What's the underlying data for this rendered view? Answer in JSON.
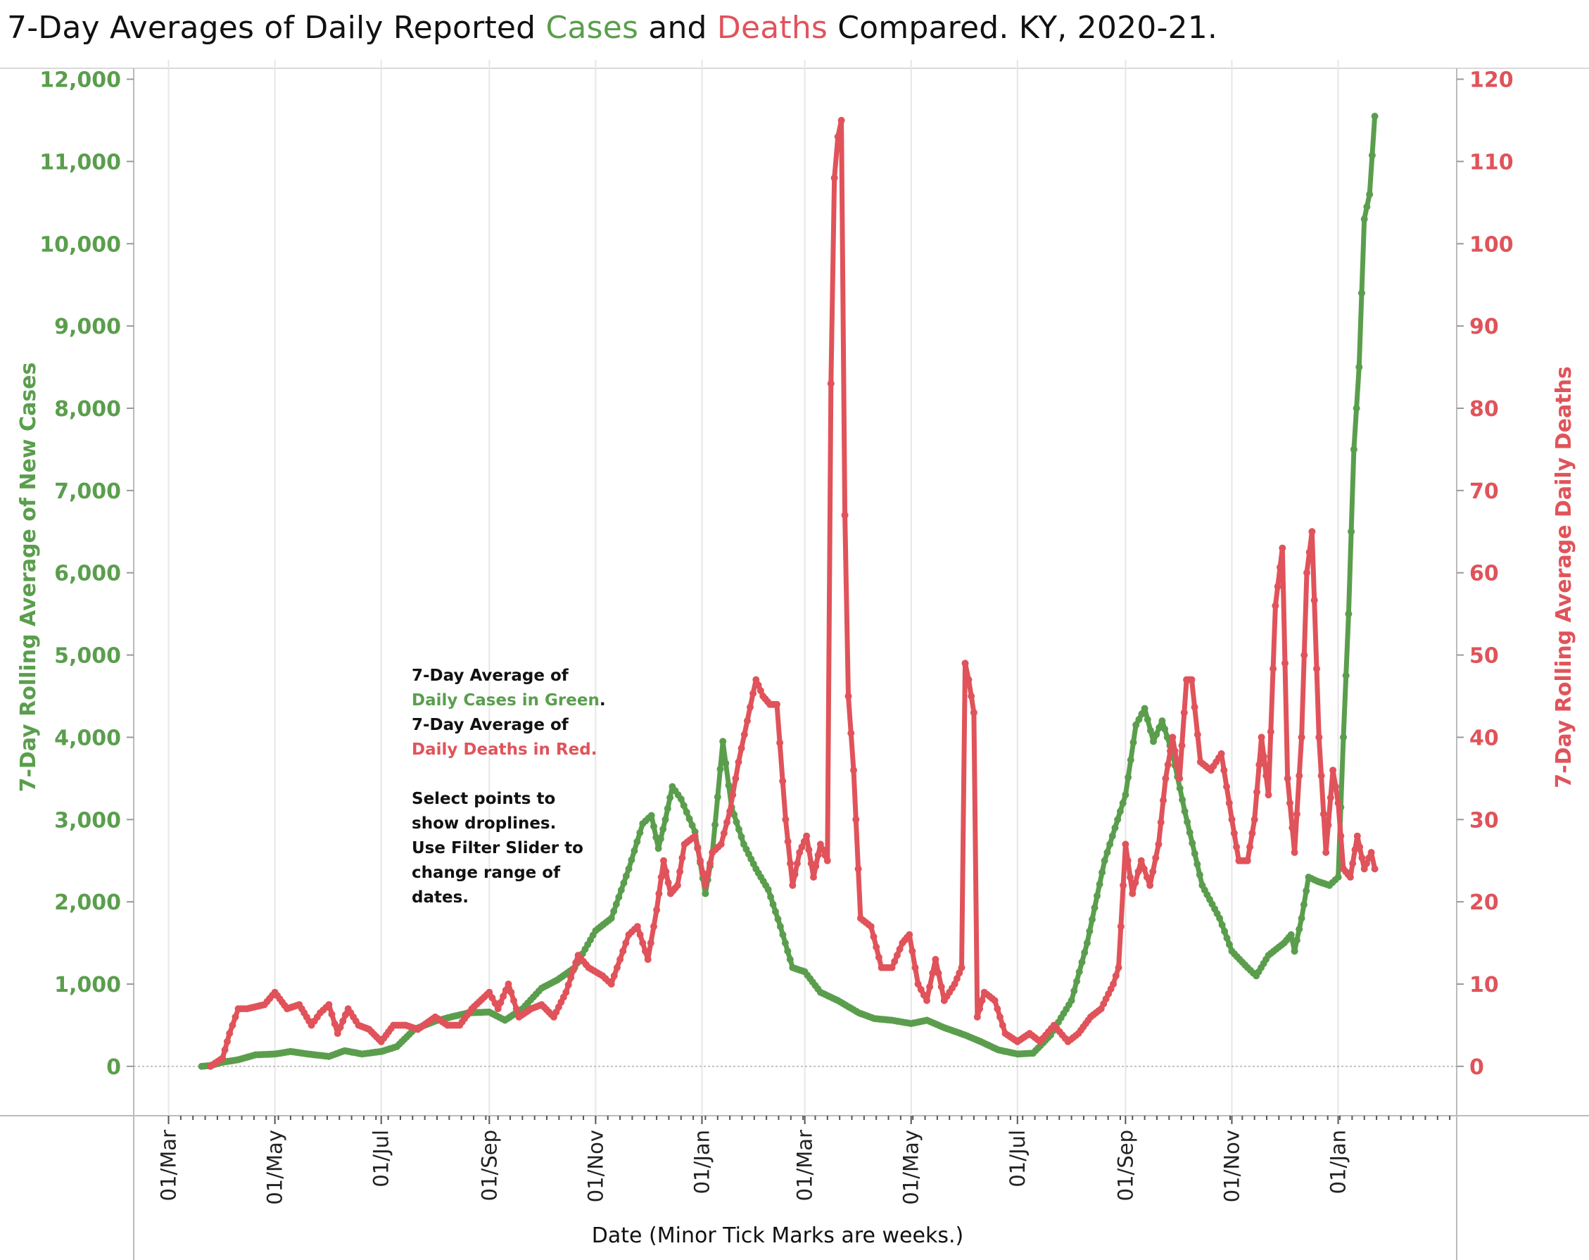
{
  "title": {
    "prefix": "7-Day Averages of Daily Reported ",
    "cases_word": "Cases",
    "middle": " and ",
    "deaths_word": "Deaths",
    "suffix": " Compared. KY, 2020-21."
  },
  "annotation": {
    "line1": "7-Day Average of",
    "line2": "Daily Cases in Green",
    "line2_punct": ".",
    "line3": "7-Day Average of",
    "line4": "Daily Deaths in Red.",
    "line5": "Select points to",
    "line6": "show droplines.",
    "line7": "Use Filter Slider to",
    "line8": "change range of",
    "line9": "dates."
  },
  "colors": {
    "cases": "#5a9e4d",
    "deaths": "#e0535a",
    "grid": "#e6e6e6",
    "axis": "#bbbbbb"
  },
  "chart_data": {
    "type": "line",
    "title": "7-Day Averages of Daily Reported Cases and Deaths Compared. KY, 2020-21.",
    "xlabel": "Date  (Minor Tick Marks are weeks.)",
    "ylabel_left": "7-Day Rolling  Average of New Cases",
    "ylabel_right": "7-Day Rolling Average Daily  Deaths",
    "x_tick_labels": [
      "01/Mar",
      "01/May",
      "01/Jul",
      "01/Sep",
      "01/Nov",
      "01/Jan",
      "01/Mar",
      "01/May",
      "01/Jul",
      "01/Sep",
      "01/Nov",
      "01/Jan"
    ],
    "x_tick_dates": [
      "2020-03-01",
      "2020-05-01",
      "2020-07-01",
      "2020-09-01",
      "2020-11-01",
      "2021-01-01",
      "2021-03-01",
      "2021-05-01",
      "2021-07-01",
      "2021-09-01",
      "2021-11-01",
      "2022-01-01"
    ],
    "xlim": [
      "2020-02-10",
      "2022-03-10"
    ],
    "y_left_ticks": [
      "0",
      "1,000",
      "2,000",
      "3,000",
      "4,000",
      "5,000",
      "6,000",
      "7,000",
      "8,000",
      "9,000",
      "10,000",
      "11,000",
      "12,000"
    ],
    "y_left_lim": [
      -600,
      12150
    ],
    "y_right_ticks": [
      "0",
      "10",
      "20",
      "30",
      "40",
      "50",
      "60",
      "70",
      "80",
      "90",
      "100",
      "110",
      "120"
    ],
    "y_right_lim": [
      -6,
      121.5
    ],
    "grid": true,
    "legend": "none",
    "series": [
      {
        "name": "Daily Cases in Green",
        "axis": "left",
        "points": [
          [
            "2020-03-20",
            0
          ],
          [
            "2020-03-25",
            10
          ],
          [
            "2020-04-01",
            50
          ],
          [
            "2020-04-10",
            80
          ],
          [
            "2020-04-20",
            140
          ],
          [
            "2020-05-01",
            150
          ],
          [
            "2020-05-10",
            180
          ],
          [
            "2020-05-20",
            150
          ],
          [
            "2020-06-01",
            120
          ],
          [
            "2020-06-10",
            190
          ],
          [
            "2020-06-20",
            150
          ],
          [
            "2020-07-01",
            180
          ],
          [
            "2020-07-10",
            240
          ],
          [
            "2020-07-20",
            450
          ],
          [
            "2020-08-01",
            550
          ],
          [
            "2020-08-10",
            600
          ],
          [
            "2020-08-20",
            650
          ],
          [
            "2020-09-01",
            660
          ],
          [
            "2020-09-10",
            560
          ],
          [
            "2020-09-20",
            700
          ],
          [
            "2020-10-01",
            950
          ],
          [
            "2020-10-10",
            1050
          ],
          [
            "2020-10-20",
            1200
          ],
          [
            "2020-11-01",
            1650
          ],
          [
            "2020-11-10",
            1800
          ],
          [
            "2020-11-20",
            2400
          ],
          [
            "2020-11-28",
            2950
          ],
          [
            "2020-12-03",
            3050
          ],
          [
            "2020-12-07",
            2650
          ],
          [
            "2020-12-11",
            3000
          ],
          [
            "2020-12-15",
            3400
          ],
          [
            "2020-12-20",
            3250
          ],
          [
            "2020-12-28",
            2850
          ],
          [
            "2021-01-03",
            2100
          ],
          [
            "2021-01-07",
            2600
          ],
          [
            "2021-01-13",
            3950
          ],
          [
            "2021-01-18",
            3150
          ],
          [
            "2021-01-25",
            2700
          ],
          [
            "2021-02-01",
            2400
          ],
          [
            "2021-02-08",
            2150
          ],
          [
            "2021-02-15",
            1700
          ],
          [
            "2021-02-22",
            1200
          ],
          [
            "2021-03-01",
            1150
          ],
          [
            "2021-03-10",
            900
          ],
          [
            "2021-03-20",
            800
          ],
          [
            "2021-04-01",
            650
          ],
          [
            "2021-04-10",
            580
          ],
          [
            "2021-04-20",
            560
          ],
          [
            "2021-05-01",
            520
          ],
          [
            "2021-05-10",
            560
          ],
          [
            "2021-05-20",
            470
          ],
          [
            "2021-06-01",
            380
          ],
          [
            "2021-06-10",
            300
          ],
          [
            "2021-06-20",
            200
          ],
          [
            "2021-07-01",
            150
          ],
          [
            "2021-07-10",
            160
          ],
          [
            "2021-07-20",
            380
          ],
          [
            "2021-08-01",
            800
          ],
          [
            "2021-08-10",
            1500
          ],
          [
            "2021-08-20",
            2500
          ],
          [
            "2021-09-01",
            3300
          ],
          [
            "2021-09-07",
            4150
          ],
          [
            "2021-09-12",
            4350
          ],
          [
            "2021-09-17",
            3950
          ],
          [
            "2021-09-22",
            4200
          ],
          [
            "2021-09-28",
            3800
          ],
          [
            "2021-10-05",
            3100
          ],
          [
            "2021-10-15",
            2200
          ],
          [
            "2021-10-25",
            1800
          ],
          [
            "2021-11-01",
            1400
          ],
          [
            "2021-11-10",
            1200
          ],
          [
            "2021-11-15",
            1100
          ],
          [
            "2021-11-22",
            1350
          ],
          [
            "2021-12-01",
            1500
          ],
          [
            "2021-12-05",
            1600
          ],
          [
            "2021-12-07",
            1400
          ],
          [
            "2021-12-11",
            1800
          ],
          [
            "2021-12-15",
            2300
          ],
          [
            "2021-12-20",
            2250
          ],
          [
            "2021-12-27",
            2200
          ],
          [
            "2022-01-01",
            2300
          ],
          [
            "2022-01-04",
            4000
          ],
          [
            "2022-01-07",
            5500
          ],
          [
            "2022-01-10",
            7500
          ],
          [
            "2022-01-13",
            8500
          ],
          [
            "2022-01-16",
            10300
          ],
          [
            "2022-01-19",
            10600
          ],
          [
            "2022-01-22",
            11550
          ]
        ]
      },
      {
        "name": "Daily Deaths in Red",
        "axis": "right",
        "points": [
          [
            "2020-03-25",
            0
          ],
          [
            "2020-04-01",
            1
          ],
          [
            "2020-04-05",
            4
          ],
          [
            "2020-04-10",
            7
          ],
          [
            "2020-04-15",
            7
          ],
          [
            "2020-04-25",
            7.5
          ],
          [
            "2020-05-01",
            9
          ],
          [
            "2020-05-08",
            7
          ],
          [
            "2020-05-15",
            7.5
          ],
          [
            "2020-05-22",
            5
          ],
          [
            "2020-05-27",
            6.5
          ],
          [
            "2020-06-01",
            7.5
          ],
          [
            "2020-06-06",
            4
          ],
          [
            "2020-06-12",
            7
          ],
          [
            "2020-06-18",
            5
          ],
          [
            "2020-06-24",
            4.5
          ],
          [
            "2020-07-01",
            3
          ],
          [
            "2020-07-08",
            5
          ],
          [
            "2020-07-15",
            5
          ],
          [
            "2020-07-22",
            4.5
          ],
          [
            "2020-08-01",
            6
          ],
          [
            "2020-08-08",
            5
          ],
          [
            "2020-08-15",
            5
          ],
          [
            "2020-08-22",
            7
          ],
          [
            "2020-09-01",
            9
          ],
          [
            "2020-09-06",
            7
          ],
          [
            "2020-09-12",
            10
          ],
          [
            "2020-09-18",
            6
          ],
          [
            "2020-09-25",
            7
          ],
          [
            "2020-10-01",
            7.5
          ],
          [
            "2020-10-08",
            6
          ],
          [
            "2020-10-15",
            9
          ],
          [
            "2020-10-22",
            13.5
          ],
          [
            "2020-10-28",
            12
          ],
          [
            "2020-11-05",
            11
          ],
          [
            "2020-11-10",
            10
          ],
          [
            "2020-11-15",
            13
          ],
          [
            "2020-11-20",
            16
          ],
          [
            "2020-11-25",
            17
          ],
          [
            "2020-12-01",
            13
          ],
          [
            "2020-12-06",
            19
          ],
          [
            "2020-12-10",
            25
          ],
          [
            "2020-12-14",
            21
          ],
          [
            "2020-12-18",
            22
          ],
          [
            "2020-12-22",
            27
          ],
          [
            "2020-12-28",
            28
          ],
          [
            "2021-01-03",
            22
          ],
          [
            "2021-01-07",
            26
          ],
          [
            "2021-01-12",
            27
          ],
          [
            "2021-01-17",
            31
          ],
          [
            "2021-01-22",
            37
          ],
          [
            "2021-01-27",
            42
          ],
          [
            "2021-02-01",
            47
          ],
          [
            "2021-02-05",
            45
          ],
          [
            "2021-02-09",
            44
          ],
          [
            "2021-02-13",
            44
          ],
          [
            "2021-02-18",
            30
          ],
          [
            "2021-02-22",
            22
          ],
          [
            "2021-02-26",
            26
          ],
          [
            "2021-03-02",
            28
          ],
          [
            "2021-03-06",
            23
          ],
          [
            "2021-03-10",
            27
          ],
          [
            "2021-03-14",
            25
          ],
          [
            "2021-03-16",
            83
          ],
          [
            "2021-03-18",
            108
          ],
          [
            "2021-03-20",
            113
          ],
          [
            "2021-03-22",
            115
          ],
          [
            "2021-03-24",
            67
          ],
          [
            "2021-03-26",
            45
          ],
          [
            "2021-03-29",
            36
          ],
          [
            "2021-04-02",
            18
          ],
          [
            "2021-04-08",
            17
          ],
          [
            "2021-04-14",
            12
          ],
          [
            "2021-04-20",
            12
          ],
          [
            "2021-04-26",
            15
          ],
          [
            "2021-04-30",
            16
          ],
          [
            "2021-05-05",
            10
          ],
          [
            "2021-05-10",
            8
          ],
          [
            "2021-05-15",
            13
          ],
          [
            "2021-05-20",
            8
          ],
          [
            "2021-05-26",
            10
          ],
          [
            "2021-05-30",
            12
          ],
          [
            "2021-06-01",
            49
          ],
          [
            "2021-06-03",
            47
          ],
          [
            "2021-06-06",
            43
          ],
          [
            "2021-06-08",
            6
          ],
          [
            "2021-06-12",
            9
          ],
          [
            "2021-06-18",
            8
          ],
          [
            "2021-06-24",
            4
          ],
          [
            "2021-07-01",
            3
          ],
          [
            "2021-07-08",
            4
          ],
          [
            "2021-07-14",
            3
          ],
          [
            "2021-07-22",
            5
          ],
          [
            "2021-07-30",
            3
          ],
          [
            "2021-08-05",
            4
          ],
          [
            "2021-08-12",
            6
          ],
          [
            "2021-08-18",
            7
          ],
          [
            "2021-08-25",
            10
          ],
          [
            "2021-08-28",
            12
          ],
          [
            "2021-09-01",
            27
          ],
          [
            "2021-09-05",
            21
          ],
          [
            "2021-09-10",
            25
          ],
          [
            "2021-09-15",
            22
          ],
          [
            "2021-09-20",
            27
          ],
          [
            "2021-09-24",
            35
          ],
          [
            "2021-09-28",
            40
          ],
          [
            "2021-10-02",
            35
          ],
          [
            "2021-10-06",
            47
          ],
          [
            "2021-10-09",
            47
          ],
          [
            "2021-10-14",
            37
          ],
          [
            "2021-10-20",
            36
          ],
          [
            "2021-10-26",
            38
          ],
          [
            "2021-11-01",
            30
          ],
          [
            "2021-11-05",
            25
          ],
          [
            "2021-11-10",
            25
          ],
          [
            "2021-11-14",
            30
          ],
          [
            "2021-11-18",
            40
          ],
          [
            "2021-11-22",
            33
          ],
          [
            "2021-11-26",
            56
          ],
          [
            "2021-11-30",
            63
          ],
          [
            "2021-12-03",
            35
          ],
          [
            "2021-12-07",
            26
          ],
          [
            "2021-12-11",
            40
          ],
          [
            "2021-12-14",
            60
          ],
          [
            "2021-12-17",
            65
          ],
          [
            "2021-12-21",
            40
          ],
          [
            "2021-12-25",
            26
          ],
          [
            "2021-12-29",
            36
          ],
          [
            "2022-01-01",
            32
          ],
          [
            "2022-01-04",
            24
          ],
          [
            "2022-01-08",
            23
          ],
          [
            "2022-01-12",
            28
          ],
          [
            "2022-01-16",
            24
          ],
          [
            "2022-01-20",
            26
          ],
          [
            "2022-01-22",
            24
          ]
        ]
      }
    ]
  }
}
